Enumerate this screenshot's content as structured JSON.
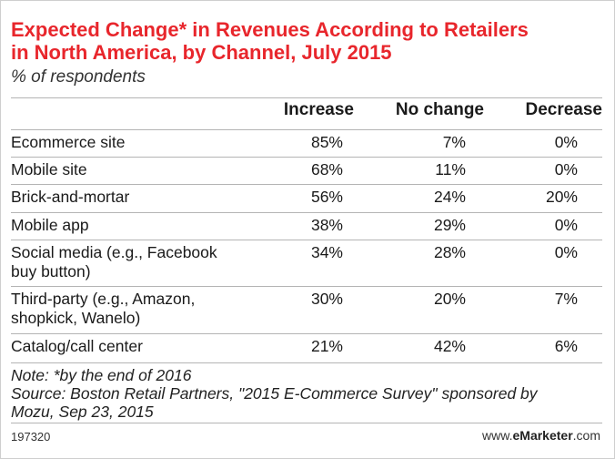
{
  "chart_data": {
    "type": "table",
    "title_line1": "Expected Change* in Revenues According to Retailers",
    "title_line2": "in North America, by Channel, July 2015",
    "subtitle": "% of respondents",
    "columns": [
      "Increase",
      "No change",
      "Decrease"
    ],
    "rows": [
      {
        "label": [
          "Ecommerce site"
        ],
        "values": [
          "85%",
          "7%",
          "0%"
        ]
      },
      {
        "label": [
          "Mobile site"
        ],
        "values": [
          "68%",
          "11%",
          "0%"
        ]
      },
      {
        "label": [
          "Brick-and-mortar"
        ],
        "values": [
          "56%",
          "24%",
          "20%"
        ]
      },
      {
        "label": [
          "Mobile app"
        ],
        "values": [
          "38%",
          "29%",
          "0%"
        ]
      },
      {
        "label": [
          "Social media (e.g., Facebook",
          "buy button)"
        ],
        "values": [
          "34%",
          "28%",
          "0%"
        ]
      },
      {
        "label": [
          "Third-party (e.g., Amazon,",
          "shopkick, Wanelo)"
        ],
        "values": [
          "30%",
          "20%",
          "7%"
        ]
      },
      {
        "label": [
          "Catalog/call center"
        ],
        "values": [
          "21%",
          "42%",
          "6%"
        ]
      }
    ],
    "notes": [
      "Note: *by the end of 2016",
      "Source: Boston Retail Partners, \"2015 E-Commerce Survey\" sponsored by",
      "Mozu, Sep 23, 2015"
    ],
    "chart_id": "197320",
    "brand_prefix": "www.",
    "brand_name": "eMarketer",
    "brand_suffix": ".com"
  }
}
